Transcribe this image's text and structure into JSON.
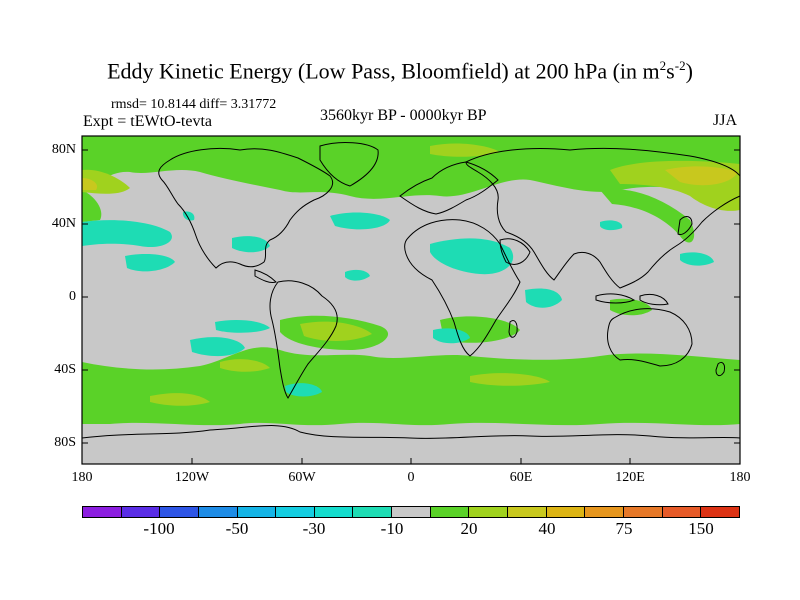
{
  "title": {
    "main": "Eddy Kinetic Energy (Low Pass, Bloomfield) at 200 hPa (in m",
    "sup1": "2",
    "mid": "s",
    "sup2": "-2",
    "end": ")"
  },
  "stats": "rmsd= 10.8144 diff= 3.31772",
  "expt": "Expt = tEWtO-tevta",
  "period": "3560kyr BP - 0000kyr BP",
  "season": "JJA",
  "lat_labels": [
    "80N",
    "40N",
    "0",
    "40S",
    "80S"
  ],
  "lon_labels": [
    "180",
    "120W",
    "60W",
    "0",
    "60E",
    "120E",
    "180"
  ],
  "colorbar": {
    "colors": [
      "#8c1ee0",
      "#5a2de6",
      "#2d55e6",
      "#1e8ce6",
      "#14b4e6",
      "#14cde1",
      "#14dccd",
      "#1edcb4",
      "#c8c8c8",
      "#5ad228",
      "#a0d21e",
      "#c8c81e",
      "#dcb414",
      "#e6961e",
      "#e67828",
      "#e65a28",
      "#dc3214"
    ],
    "labels": [
      "-100",
      "-50",
      "-30",
      "-10",
      "20",
      "40",
      "75",
      "150"
    ]
  }
}
